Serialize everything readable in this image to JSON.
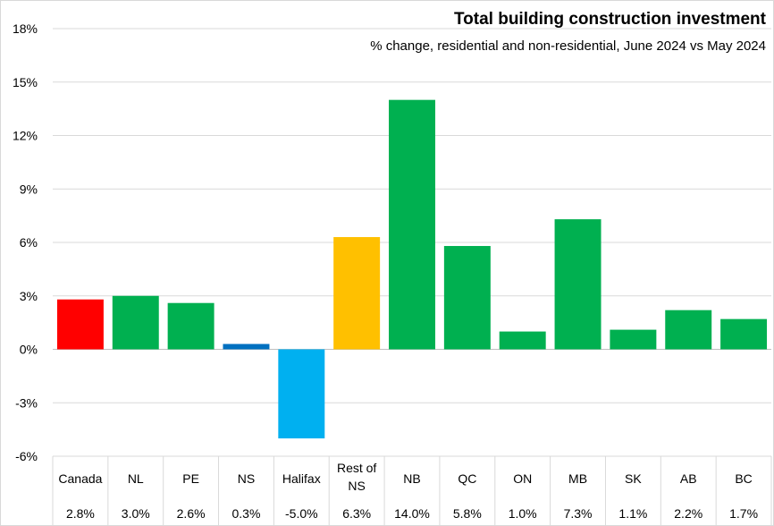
{
  "chart_data": {
    "type": "bar",
    "title": "Total building construction investment",
    "subtitle": "% change, residential and non-residential, June 2024 vs May 2024",
    "categories": [
      [
        "Canada"
      ],
      [
        "NL"
      ],
      [
        "PE"
      ],
      [
        "NS"
      ],
      [
        "Halifax"
      ],
      [
        "Rest of",
        "NS"
      ],
      [
        "NB"
      ],
      [
        "QC"
      ],
      [
        "ON"
      ],
      [
        "MB"
      ],
      [
        "SK"
      ],
      [
        "AB"
      ],
      [
        "BC"
      ]
    ],
    "values": [
      2.8,
      3.0,
      2.6,
      0.3,
      -5.0,
      6.3,
      14.0,
      5.8,
      1.0,
      7.3,
      1.1,
      2.2,
      1.7
    ],
    "value_labels": [
      "2.8%",
      "3.0%",
      "2.6%",
      "0.3%",
      "-5.0%",
      "6.3%",
      "14.0%",
      "5.8%",
      "1.0%",
      "7.3%",
      "1.1%",
      "2.2%",
      "1.7%"
    ],
    "bar_colors": [
      "#ff0000",
      "#00b050",
      "#00b050",
      "#0070c0",
      "#00b0f0",
      "#ffc000",
      "#00b050",
      "#00b050",
      "#00b050",
      "#00b050",
      "#00b050",
      "#00b050",
      "#00b050"
    ],
    "ylim": [
      -6,
      18
    ],
    "yticks": [
      -6,
      -3,
      0,
      3,
      6,
      9,
      12,
      15,
      18
    ],
    "ytick_labels": [
      "-6%",
      "-3%",
      "0%",
      "3%",
      "6%",
      "9%",
      "12%",
      "15%",
      "18%"
    ],
    "grid": true,
    "xlabel": "",
    "ylabel": ""
  }
}
